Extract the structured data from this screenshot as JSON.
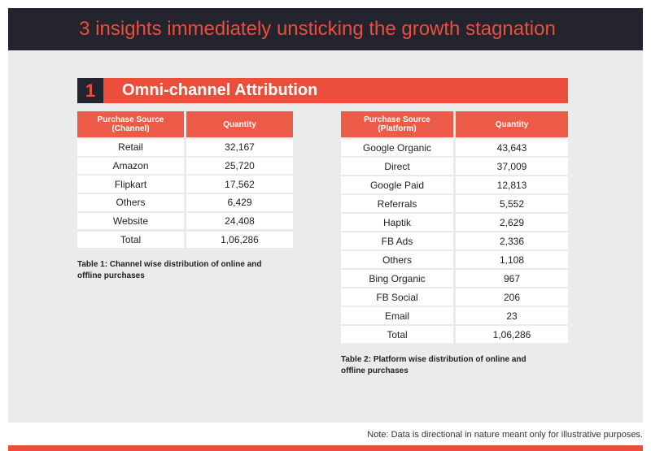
{
  "header": {
    "title": "3 insights immediately unsticking the growth stagnation"
  },
  "section": {
    "number": "1",
    "title": "Omni-channel Attribution"
  },
  "tables": [
    {
      "columns": [
        "Purchase Source (Channel)",
        "Quantity"
      ],
      "rows": [
        [
          "Retail",
          "32,167"
        ],
        [
          "Amazon",
          "25,720"
        ],
        [
          "Flipkart",
          "17,562"
        ],
        [
          "Others",
          "6,429"
        ],
        [
          "Website",
          "24,408"
        ],
        [
          "Total",
          "1,06,286"
        ]
      ],
      "caption": "Table 1: Channel wise distribution of online and offline purchases"
    },
    {
      "columns": [
        "Purchase Source (Platform)",
        "Quantity"
      ],
      "rows": [
        [
          "Google Organic",
          "43,643"
        ],
        [
          "Direct",
          "37,009"
        ],
        [
          "Google Paid",
          "12,813"
        ],
        [
          "Referrals",
          "5,552"
        ],
        [
          "Haptik",
          "2,629"
        ],
        [
          "FB Ads",
          "2,336"
        ],
        [
          "Others",
          "1,108"
        ],
        [
          "Bing Organic",
          "967"
        ],
        [
          "FB Social",
          "206"
        ],
        [
          "Email",
          "23"
        ],
        [
          "Total",
          "1,06,286"
        ]
      ],
      "caption": "Table 2: Platform wise distribution of online and offline purchases"
    }
  ],
  "footer": {
    "note": "Note: Data is directional in nature meant only for illustrative purposes."
  }
}
